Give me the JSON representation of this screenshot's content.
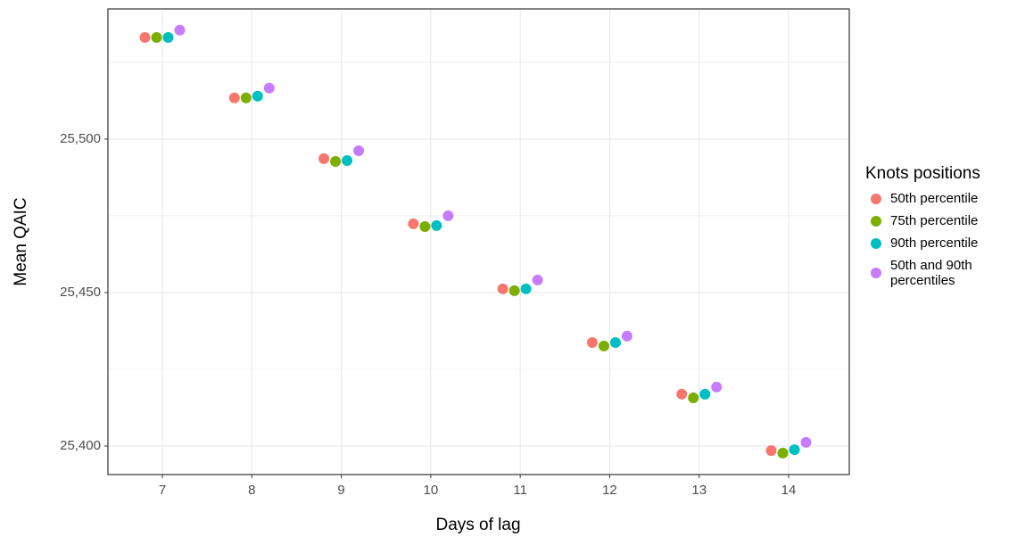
{
  "chart_data": {
    "type": "scatter",
    "x_label": "Days of lag",
    "y_label": "Mean QAIC",
    "categories": [
      "7",
      "8",
      "9",
      "10",
      "11",
      "12",
      "13",
      "14"
    ],
    "ylim": [
      25390.7,
      25542.4
    ],
    "yticks": [
      {
        "value": 25400,
        "label": "25,400"
      },
      {
        "value": 25450,
        "label": "25,450"
      },
      {
        "value": 25500,
        "label": "25,500"
      }
    ],
    "grid": true,
    "legend_title": "Knots positions",
    "legend_position": "right",
    "series": [
      {
        "name": "50th percentile",
        "color": "#F8766D",
        "values": [
          25533.1,
          25513.4,
          25493.6,
          25472.4,
          25451.2,
          25433.7,
          25416.9,
          25398.5
        ]
      },
      {
        "name": "75th percentile",
        "color": "#7CAE00",
        "values": [
          25533.1,
          25513.4,
          25492.7,
          25471.5,
          25450.6,
          25432.6,
          25415.7,
          25397.7
        ]
      },
      {
        "name": "90th percentile",
        "color": "#00BFC4",
        "values": [
          25533.1,
          25514.0,
          25493.0,
          25471.8,
          25451.2,
          25433.7,
          25416.9,
          25398.8
        ]
      },
      {
        "name": "50th and 90th percentiles",
        "color": "#C77CFF",
        "values": [
          25535.5,
          25516.6,
          25496.2,
          25475.0,
          25454.1,
          25435.8,
          25419.2,
          25401.2
        ]
      }
    ]
  }
}
